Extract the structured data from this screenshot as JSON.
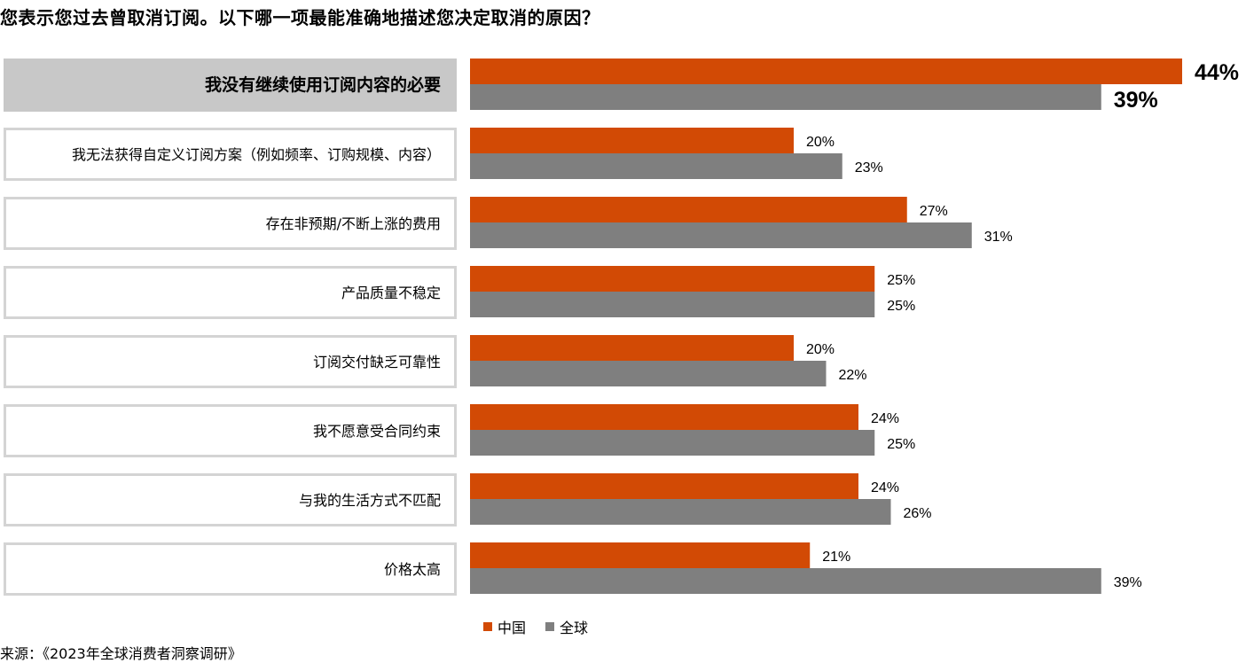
{
  "title": "您表示您过去曾取消订阅。以下哪一项最能准确地描述您决定取消的原因？",
  "source": "来源：《2023年全球消费者洞察调研》",
  "colors": {
    "china": "#d24a05",
    "global": "#7f7f7f",
    "highlight_bg": "#c8c8c8",
    "box_border": "#d4d4d4"
  },
  "chart_data": {
    "type": "bar",
    "orientation": "horizontal",
    "categories": [
      "我没有继续使用订阅内容的必要",
      "我无法获得自定义订阅方案（例如频率、订购规模、内容）",
      "存在非预期/不断上涨的费用",
      "产品质量不稳定",
      "订阅交付缺乏可靠性",
      "我不愿意受合同约束",
      "与我的生活方式不匹配",
      "价格太高"
    ],
    "highlighted_category": 0,
    "series": [
      {
        "name": "中国",
        "values": [
          44,
          20,
          27,
          25,
          20,
          24,
          24,
          21
        ],
        "labels": [
          "44%",
          "20%",
          "27%",
          "25%",
          "20%",
          "24%",
          "24%",
          "21%"
        ]
      },
      {
        "name": "全球",
        "values": [
          39,
          23,
          31,
          25,
          22,
          25,
          26,
          39
        ],
        "labels": [
          "39%",
          "23%",
          "31%",
          "25%",
          "22%",
          "25%",
          "26%",
          "39%"
        ]
      }
    ],
    "xlim": [
      0,
      44
    ],
    "legend_position": "bottom",
    "grid": false
  }
}
